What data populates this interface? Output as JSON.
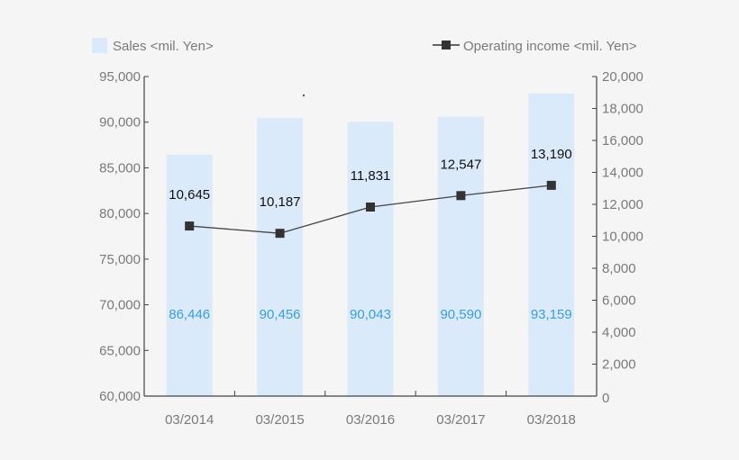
{
  "chart_data": {
    "type": "bar",
    "categories": [
      "03/2014",
      "03/2015",
      "03/2016",
      "03/2017",
      "03/2018"
    ],
    "series": [
      {
        "name": "Sales <mil. Yen>",
        "type": "bar",
        "axis": "left",
        "color": "#dbeafb",
        "label_color": "#3a9fd6",
        "values": [
          86446,
          90456,
          90043,
          90590,
          93159
        ],
        "labels": [
          "86,446",
          "90,456",
          "90,043",
          "90,590",
          "93,159"
        ]
      },
      {
        "name": "Operating income <mil. Yen>",
        "type": "line",
        "axis": "right",
        "color": "#333333",
        "marker": "square",
        "values": [
          10645,
          10187,
          11831,
          12547,
          13190
        ],
        "labels": [
          "10,645",
          "10,187",
          "11,831",
          "12,547",
          "13,190"
        ]
      }
    ],
    "title": "",
    "xlabel": "",
    "ylabel": "",
    "ylim": [
      60000,
      95000
    ],
    "y2lim": [
      0,
      20000
    ],
    "yticks": [
      "95,000",
      "90,000",
      "85,000",
      "80,000",
      "75,000",
      "70,000",
      "65,000",
      "60,000"
    ],
    "y2ticks": [
      "20,000",
      "18,000",
      "16,000",
      "14,000",
      "12,000",
      "10,000",
      "8,000",
      "6,000",
      "4,000",
      "2,000",
      "0"
    ],
    "grid": false,
    "legend_position": "top"
  },
  "legend": {
    "sales": "Sales <mil. Yen>",
    "income": "Operating income <mil. Yen>"
  }
}
